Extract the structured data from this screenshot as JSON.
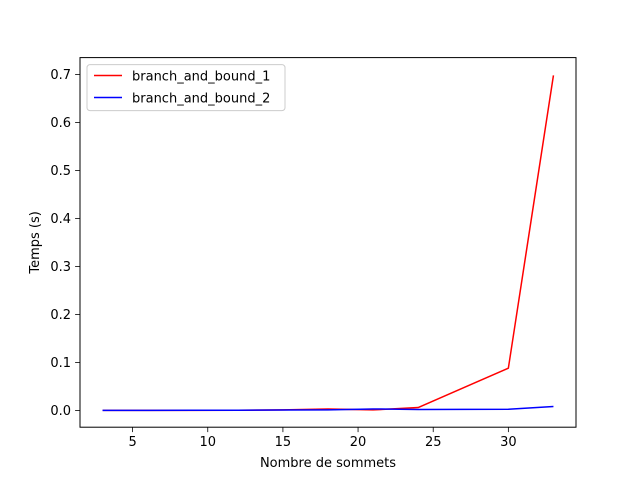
{
  "chart_data": {
    "type": "line",
    "title": "",
    "xlabel": "Nombre de sommets",
    "ylabel": "Temps (s)",
    "xlim": [
      1.5,
      34.5
    ],
    "ylim": [
      -0.035,
      0.735
    ],
    "xticks": [
      5,
      10,
      15,
      20,
      25,
      30
    ],
    "yticks": [
      0.0,
      0.1,
      0.2,
      0.3,
      0.4,
      0.5,
      0.6,
      0.7
    ],
    "xtick_labels": [
      "5",
      "10",
      "15",
      "20",
      "25",
      "30"
    ],
    "ytick_labels": [
      "0.0",
      "0.1",
      "0.2",
      "0.3",
      "0.4",
      "0.5",
      "0.6",
      "0.7"
    ],
    "legend_position": "top-left",
    "grid": false,
    "series": [
      {
        "name": "branch_and_bound_1",
        "color": "#ff0000",
        "x": [
          3,
          6,
          9,
          12,
          15,
          18,
          21,
          24,
          30,
          33
        ],
        "y": [
          0.0,
          0.0,
          0.0001,
          0.0003,
          0.001,
          0.003,
          0.001,
          0.006,
          0.088,
          0.698
        ]
      },
      {
        "name": "branch_and_bound_2",
        "color": "#0000ff",
        "x": [
          3,
          6,
          9,
          12,
          15,
          18,
          21,
          24,
          30,
          33
        ],
        "y": [
          0.0,
          0.0,
          0.0002,
          0.0004,
          0.0008,
          0.001,
          0.003,
          0.002,
          0.0025,
          0.008
        ]
      }
    ]
  }
}
